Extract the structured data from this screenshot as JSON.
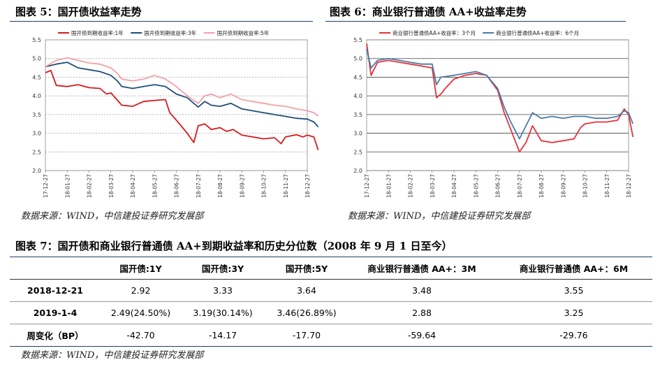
{
  "fig5": {
    "title": "图表 5：国开债收益率走势",
    "source": "数据来源：WIND，中信建投证券研究发展部"
  },
  "fig6": {
    "title": "图表 6：商业银行普通债 AA+收益率走势",
    "source": "数据来源：WIND，中信建投证券研究发展部"
  },
  "fig7": {
    "title": "图表 7：国开债和商业银行普通债 AA+到期收益率和历史分位数（2008 年 9 月 1 日至今）",
    "source": "数据来源：WIND，中信建投证券研究发展部",
    "headers": [
      "",
      "国开债:1Y",
      "国开债:3Y",
      "国开债:5Y",
      "商业银行普通债 AA+：3M",
      "商业银行普通债 AA+：6M"
    ],
    "rows": [
      [
        "2018-12-21",
        "2.92",
        "3.33",
        "3.64",
        "3.48",
        "3.55"
      ],
      [
        "2019-1-4",
        "2.49(24.50%)",
        "3.19(30.14%)",
        "3.46(26.89%)",
        "2.88",
        "3.25"
      ],
      [
        "周变化（BP）",
        "-42.70",
        "-14.17",
        "-17.70",
        "-59.64",
        "-29.76"
      ]
    ]
  },
  "chart_data": [
    {
      "type": "line",
      "x": [
        "17-12-27",
        "18-01-27",
        "18-02-27",
        "18-03-27",
        "18-04-27",
        "18-05-27",
        "18-06-27",
        "18-07-27",
        "18-08-27",
        "18-09-27",
        "18-10-27",
        "18-11-27",
        "18-12-27"
      ],
      "ylim": [
        2.0,
        5.5
      ],
      "yticks": [
        "2.0",
        "2.5",
        "3.0",
        "3.5",
        "4.0",
        "4.5",
        "5.0",
        "5.5"
      ],
      "grid": "horizontal dashed",
      "legend": "top",
      "series": [
        {
          "name": "国开债到期收益率:1年",
          "color": "#d7191c",
          "points": [
            [
              0,
              4.62
            ],
            [
              0.25,
              4.68
            ],
            [
              0.5,
              4.28
            ],
            [
              1,
              4.25
            ],
            [
              1.5,
              4.3
            ],
            [
              2,
              4.22
            ],
            [
              2.5,
              4.2
            ],
            [
              2.8,
              4.05
            ],
            [
              3,
              4.08
            ],
            [
              3.5,
              3.75
            ],
            [
              4,
              3.72
            ],
            [
              4.5,
              3.85
            ],
            [
              5,
              3.88
            ],
            [
              5.5,
              3.9
            ],
            [
              5.7,
              3.55
            ],
            [
              6,
              3.35
            ],
            [
              6.5,
              3.0
            ],
            [
              6.8,
              2.75
            ],
            [
              7,
              3.2
            ],
            [
              7.3,
              3.25
            ],
            [
              7.6,
              3.1
            ],
            [
              8,
              3.15
            ],
            [
              8.3,
              3.05
            ],
            [
              8.6,
              3.1
            ],
            [
              9,
              2.95
            ],
            [
              9.5,
              2.9
            ],
            [
              10,
              2.85
            ],
            [
              10.5,
              2.88
            ],
            [
              10.8,
              2.72
            ],
            [
              11,
              2.9
            ],
            [
              11.5,
              2.96
            ],
            [
              11.8,
              2.9
            ],
            [
              12,
              2.95
            ],
            [
              12.3,
              2.9
            ],
            [
              12.5,
              2.55
            ]
          ]
        },
        {
          "name": "国开债到期收益率:3年",
          "color": "#1f4e79",
          "points": [
            [
              0,
              4.78
            ],
            [
              0.5,
              4.85
            ],
            [
              1,
              4.9
            ],
            [
              1.5,
              4.75
            ],
            [
              2,
              4.7
            ],
            [
              2.5,
              4.65
            ],
            [
              3,
              4.55
            ],
            [
              3.3,
              4.4
            ],
            [
              3.5,
              4.25
            ],
            [
              4,
              4.2
            ],
            [
              4.5,
              4.25
            ],
            [
              5,
              4.3
            ],
            [
              5.5,
              4.25
            ],
            [
              6,
              4.05
            ],
            [
              6.5,
              3.95
            ],
            [
              7,
              3.7
            ],
            [
              7.3,
              3.85
            ],
            [
              7.6,
              3.75
            ],
            [
              8,
              3.72
            ],
            [
              8.5,
              3.8
            ],
            [
              9,
              3.65
            ],
            [
              9.5,
              3.6
            ],
            [
              10,
              3.55
            ],
            [
              10.5,
              3.5
            ],
            [
              11,
              3.45
            ],
            [
              11.5,
              3.4
            ],
            [
              12,
              3.38
            ],
            [
              12.3,
              3.3
            ],
            [
              12.5,
              3.17
            ]
          ]
        },
        {
          "name": "国开债到期收益率:5年",
          "color": "#f4a0a8",
          "points": [
            [
              0,
              4.78
            ],
            [
              0.5,
              4.95
            ],
            [
              1,
              5.02
            ],
            [
              1.5,
              4.95
            ],
            [
              2,
              4.88
            ],
            [
              2.5,
              4.85
            ],
            [
              3,
              4.75
            ],
            [
              3.3,
              4.6
            ],
            [
              3.5,
              4.45
            ],
            [
              4,
              4.4
            ],
            [
              4.5,
              4.45
            ],
            [
              5,
              4.55
            ],
            [
              5.5,
              4.45
            ],
            [
              6,
              4.25
            ],
            [
              6.5,
              4.0
            ],
            [
              7,
              3.8
            ],
            [
              7.3,
              4.0
            ],
            [
              7.6,
              4.05
            ],
            [
              8,
              3.95
            ],
            [
              8.5,
              4.05
            ],
            [
              9,
              3.9
            ],
            [
              9.5,
              3.85
            ],
            [
              10,
              3.8
            ],
            [
              10.5,
              3.75
            ],
            [
              11,
              3.72
            ],
            [
              11.5,
              3.65
            ],
            [
              12,
              3.6
            ],
            [
              12.3,
              3.55
            ],
            [
              12.5,
              3.46
            ]
          ]
        }
      ]
    },
    {
      "type": "line",
      "x": [
        "17-12-27",
        "18-01-27",
        "18-02-27",
        "18-03-27",
        "18-04-27",
        "18-05-27",
        "18-06-27",
        "18-07-27",
        "18-08-27",
        "18-09-27",
        "18-10-27",
        "18-11-27",
        "18-12-27"
      ],
      "ylim": [
        2.0,
        5.5
      ],
      "yticks": [
        "2.0",
        "2.5",
        "3.0",
        "3.5",
        "4.0",
        "4.5",
        "5.0",
        "5.5"
      ],
      "grid": "horizontal solid",
      "legend": "top",
      "series": [
        {
          "name": "商业银行普通债AA+收益率：3个月",
          "color": "#e8303a",
          "points": [
            [
              0,
              5.4
            ],
            [
              0.2,
              4.55
            ],
            [
              0.5,
              4.9
            ],
            [
              1,
              4.95
            ],
            [
              1.5,
              4.9
            ],
            [
              2,
              4.85
            ],
            [
              2.5,
              4.8
            ],
            [
              3,
              4.75
            ],
            [
              3.2,
              3.95
            ],
            [
              3.4,
              4.05
            ],
            [
              3.6,
              4.2
            ],
            [
              4,
              4.45
            ],
            [
              4.5,
              4.55
            ],
            [
              5,
              4.6
            ],
            [
              5.5,
              4.55
            ],
            [
              6,
              4.15
            ],
            [
              6.3,
              3.55
            ],
            [
              6.6,
              3.1
            ],
            [
              7,
              2.5
            ],
            [
              7.3,
              2.75
            ],
            [
              7.6,
              3.2
            ],
            [
              8,
              2.8
            ],
            [
              8.5,
              2.75
            ],
            [
              9,
              2.8
            ],
            [
              9.5,
              2.85
            ],
            [
              9.8,
              3.15
            ],
            [
              10,
              3.25
            ],
            [
              10.5,
              3.3
            ],
            [
              11,
              3.3
            ],
            [
              11.5,
              3.35
            ],
            [
              11.8,
              3.65
            ],
            [
              12,
              3.5
            ],
            [
              12.2,
              2.9
            ]
          ]
        },
        {
          "name": "商业银行普通债AA+收益率：6个月",
          "color": "#4a7ba6",
          "points": [
            [
              0,
              5.25
            ],
            [
              0.2,
              4.75
            ],
            [
              0.5,
              4.95
            ],
            [
              1,
              5.0
            ],
            [
              1.5,
              4.95
            ],
            [
              2,
              4.9
            ],
            [
              2.5,
              4.85
            ],
            [
              3,
              4.85
            ],
            [
              3.2,
              4.3
            ],
            [
              3.4,
              4.5
            ],
            [
              4,
              4.55
            ],
            [
              4.5,
              4.6
            ],
            [
              5,
              4.65
            ],
            [
              5.5,
              4.55
            ],
            [
              6,
              4.2
            ],
            [
              6.3,
              3.7
            ],
            [
              6.6,
              3.3
            ],
            [
              7,
              2.85
            ],
            [
              7.3,
              3.2
            ],
            [
              7.6,
              3.55
            ],
            [
              8,
              3.4
            ],
            [
              8.5,
              3.45
            ],
            [
              9,
              3.4
            ],
            [
              9.5,
              3.45
            ],
            [
              10,
              3.45
            ],
            [
              10.5,
              3.4
            ],
            [
              11,
              3.4
            ],
            [
              11.5,
              3.45
            ],
            [
              11.8,
              3.6
            ],
            [
              12,
              3.55
            ],
            [
              12.2,
              3.25
            ]
          ]
        }
      ]
    }
  ]
}
